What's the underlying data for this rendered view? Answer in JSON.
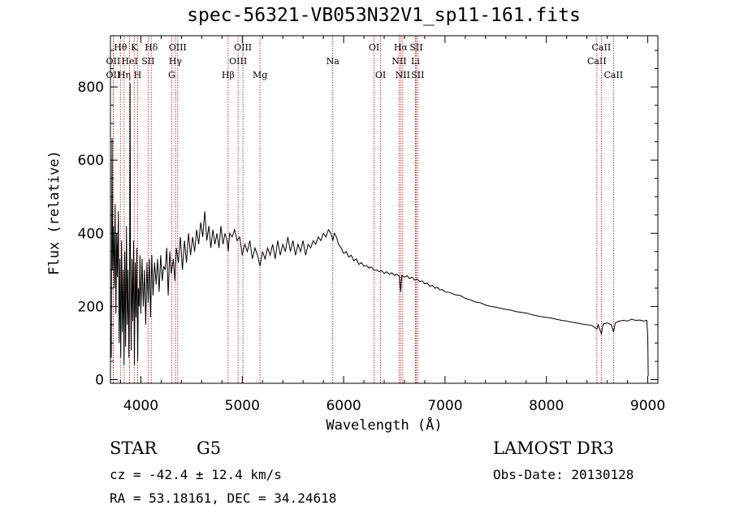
{
  "chart_data": {
    "type": "line",
    "title": "spec-56321-VB053N32V1_sp11-161.fits",
    "xlabel": "Wavelength (Å)",
    "ylabel": "Flux (relative)",
    "xlim": [
      3700,
      9100
    ],
    "ylim": [
      -10,
      940
    ],
    "xticks": [
      4000,
      5000,
      6000,
      7000,
      8000,
      9000
    ],
    "yticks": [
      0,
      200,
      400,
      600,
      800
    ],
    "series": [
      {
        "name": "flux",
        "points": [
          [
            3700,
            120
          ],
          [
            3708,
            60
          ],
          [
            3716,
            660
          ],
          [
            3722,
            300
          ],
          [
            3730,
            420
          ],
          [
            3738,
            250
          ],
          [
            3746,
            480
          ],
          [
            3754,
            180
          ],
          [
            3762,
            400
          ],
          [
            3770,
            280
          ],
          [
            3778,
            460
          ],
          [
            3786,
            100
          ],
          [
            3794,
            330
          ],
          [
            3802,
            60
          ],
          [
            3810,
            380
          ],
          [
            3818,
            130
          ],
          [
            3826,
            300
          ],
          [
            3834,
            40
          ],
          [
            3842,
            350
          ],
          [
            3850,
            90
          ],
          [
            3858,
            420
          ],
          [
            3866,
            150
          ],
          [
            3874,
            300
          ],
          [
            3882,
            60
          ],
          [
            3888,
            250
          ],
          [
            3894,
            810
          ],
          [
            3898,
            300
          ],
          [
            3904,
            80
          ],
          [
            3912,
            330
          ],
          [
            3920,
            160
          ],
          [
            3928,
            380
          ],
          [
            3936,
            40
          ],
          [
            3944,
            320
          ],
          [
            3952,
            170
          ],
          [
            3960,
            360
          ],
          [
            3968,
            50
          ],
          [
            3976,
            250
          ],
          [
            3984,
            200
          ],
          [
            3992,
            340
          ],
          [
            4000,
            180
          ],
          [
            4012,
            330
          ],
          [
            4024,
            200
          ],
          [
            4036,
            300
          ],
          [
            4048,
            150
          ],
          [
            4060,
            320
          ],
          [
            4072,
            210
          ],
          [
            4084,
            330
          ],
          [
            4096,
            170
          ],
          [
            4108,
            340
          ],
          [
            4120,
            230
          ],
          [
            4135,
            320
          ],
          [
            4150,
            260
          ],
          [
            4165,
            330
          ],
          [
            4180,
            240
          ],
          [
            4195,
            340
          ],
          [
            4210,
            270
          ],
          [
            4225,
            310
          ],
          [
            4240,
            300
          ],
          [
            4255,
            360
          ],
          [
            4270,
            230
          ],
          [
            4285,
            350
          ],
          [
            4300,
            290
          ],
          [
            4320,
            330
          ],
          [
            4335,
            270
          ],
          [
            4350,
            360
          ],
          [
            4370,
            320
          ],
          [
            4390,
            390
          ],
          [
            4410,
            300
          ],
          [
            4430,
            380
          ],
          [
            4450,
            320
          ],
          [
            4470,
            400
          ],
          [
            4490,
            340
          ],
          [
            4510,
            390
          ],
          [
            4530,
            350
          ],
          [
            4550,
            410
          ],
          [
            4570,
            370
          ],
          [
            4590,
            430
          ],
          [
            4610,
            390
          ],
          [
            4630,
            460
          ],
          [
            4650,
            380
          ],
          [
            4670,
            420
          ],
          [
            4690,
            360
          ],
          [
            4710,
            410
          ],
          [
            4730,
            370
          ],
          [
            4750,
            400
          ],
          [
            4770,
            360
          ],
          [
            4790,
            420
          ],
          [
            4810,
            370
          ],
          [
            4830,
            400
          ],
          [
            4850,
            380
          ],
          [
            4861,
            350
          ],
          [
            4875,
            400
          ],
          [
            4900,
            390
          ],
          [
            4925,
            410
          ],
          [
            4950,
            380
          ],
          [
            4975,
            390
          ],
          [
            5000,
            340
          ],
          [
            5025,
            370
          ],
          [
            5050,
            350
          ],
          [
            5075,
            380
          ],
          [
            5100,
            330
          ],
          [
            5125,
            360
          ],
          [
            5150,
            340
          ],
          [
            5175,
            310
          ],
          [
            5200,
            350
          ],
          [
            5225,
            330
          ],
          [
            5250,
            360
          ],
          [
            5275,
            340
          ],
          [
            5300,
            370
          ],
          [
            5325,
            330
          ],
          [
            5350,
            380
          ],
          [
            5375,
            340
          ],
          [
            5400,
            370
          ],
          [
            5425,
            350
          ],
          [
            5450,
            390
          ],
          [
            5475,
            350
          ],
          [
            5500,
            380
          ],
          [
            5525,
            340
          ],
          [
            5550,
            370
          ],
          [
            5575,
            350
          ],
          [
            5600,
            380
          ],
          [
            5625,
            340
          ],
          [
            5650,
            370
          ],
          [
            5675,
            360
          ],
          [
            5700,
            380
          ],
          [
            5725,
            370
          ],
          [
            5750,
            390
          ],
          [
            5775,
            380
          ],
          [
            5800,
            400
          ],
          [
            5825,
            390
          ],
          [
            5850,
            410
          ],
          [
            5875,
            400
          ],
          [
            5893,
            380
          ],
          [
            5910,
            400
          ],
          [
            5930,
            390
          ],
          [
            5950,
            370
          ],
          [
            5975,
            360
          ],
          [
            6000,
            345
          ],
          [
            6025,
            350
          ],
          [
            6050,
            335
          ],
          [
            6075,
            340
          ],
          [
            6100,
            325
          ],
          [
            6125,
            330
          ],
          [
            6150,
            315
          ],
          [
            6175,
            320
          ],
          [
            6200,
            310
          ],
          [
            6225,
            312
          ],
          [
            6250,
            305
          ],
          [
            6275,
            308
          ],
          [
            6300,
            298
          ],
          [
            6325,
            300
          ],
          [
            6350,
            295
          ],
          [
            6375,
            298
          ],
          [
            6400,
            290
          ],
          [
            6425,
            295
          ],
          [
            6450,
            288
          ],
          [
            6475,
            292
          ],
          [
            6500,
            285
          ],
          [
            6525,
            288
          ],
          [
            6550,
            282
          ],
          [
            6563,
            240
          ],
          [
            6575,
            285
          ],
          [
            6600,
            280
          ],
          [
            6625,
            284
          ],
          [
            6650,
            276
          ],
          [
            6675,
            280
          ],
          [
            6700,
            272
          ],
          [
            6725,
            275
          ],
          [
            6750,
            268
          ],
          [
            6775,
            270
          ],
          [
            6800,
            262
          ],
          [
            6825,
            264
          ],
          [
            6850,
            255
          ],
          [
            6875,
            258
          ],
          [
            6900,
            250
          ],
          [
            6925,
            252
          ],
          [
            6950,
            245
          ],
          [
            6975,
            246
          ],
          [
            7000,
            240
          ],
          [
            7050,
            238
          ],
          [
            7100,
            232
          ],
          [
            7150,
            230
          ],
          [
            7200,
            222
          ],
          [
            7250,
            218
          ],
          [
            7300,
            212
          ],
          [
            7350,
            210
          ],
          [
            7400,
            204
          ],
          [
            7450,
            200
          ],
          [
            7500,
            198
          ],
          [
            7550,
            195
          ],
          [
            7600,
            192
          ],
          [
            7650,
            190
          ],
          [
            7700,
            186
          ],
          [
            7750,
            184
          ],
          [
            7800,
            182
          ],
          [
            7850,
            178
          ],
          [
            7900,
            175
          ],
          [
            7950,
            172
          ],
          [
            8000,
            170
          ],
          [
            8050,
            168
          ],
          [
            8100,
            165
          ],
          [
            8150,
            162
          ],
          [
            8200,
            160
          ],
          [
            8250,
            157
          ],
          [
            8300,
            155
          ],
          [
            8350,
            152
          ],
          [
            8400,
            150
          ],
          [
            8450,
            148
          ],
          [
            8498,
            138
          ],
          [
            8510,
            150
          ],
          [
            8542,
            125
          ],
          [
            8560,
            152
          ],
          [
            8600,
            155
          ],
          [
            8640,
            150
          ],
          [
            8662,
            130
          ],
          [
            8680,
            155
          ],
          [
            8720,
            160
          ],
          [
            8760,
            162
          ],
          [
            8800,
            160
          ],
          [
            8840,
            165
          ],
          [
            8880,
            162
          ],
          [
            8920,
            163
          ],
          [
            8960,
            160
          ],
          [
            8990,
            162
          ],
          [
            9000,
            120
          ],
          [
            9005,
            10
          ]
        ]
      }
    ],
    "line_markers": [
      {
        "wl": 3727,
        "label": "OII",
        "row": 2
      },
      {
        "wl": 3727,
        "label": "OII",
        "row": 3
      },
      {
        "wl": 3798,
        "label": "Hθ",
        "row": 1
      },
      {
        "wl": 3835,
        "label": "Hη",
        "row": 3
      },
      {
        "wl": 3889,
        "label": "HeI",
        "row": 2
      },
      {
        "wl": 3934,
        "label": "K",
        "row": 1
      },
      {
        "wl": 3968,
        "label": "H",
        "row": 3
      },
      {
        "wl": 4071,
        "label": "SII",
        "row": 2
      },
      {
        "wl": 4102,
        "label": "Hδ",
        "row": 1
      },
      {
        "wl": 4304,
        "label": "G",
        "row": 3
      },
      {
        "wl": 4340,
        "label": "Hγ",
        "row": 2
      },
      {
        "wl": 4363,
        "label": "OIII",
        "row": 1
      },
      {
        "wl": 4861,
        "label": "Hβ",
        "row": 3
      },
      {
        "wl": 4959,
        "label": "OIII",
        "row": 2
      },
      {
        "wl": 5007,
        "label": "OIII",
        "row": 1
      },
      {
        "wl": 5175,
        "label": "Mg",
        "row": 3
      },
      {
        "wl": 5893,
        "label": "Na",
        "row": 2
      },
      {
        "wl": 6300,
        "label": "OI",
        "row": 1
      },
      {
        "wl": 6364,
        "label": "OI",
        "row": 3
      },
      {
        "wl": 6548,
        "label": "NII",
        "row": 2
      },
      {
        "wl": 6563,
        "label": "Hα",
        "row": 1
      },
      {
        "wl": 6583,
        "label": "NII",
        "row": 3
      },
      {
        "wl": 6708,
        "label": "Li",
        "row": 2
      },
      {
        "wl": 6716,
        "label": "SII",
        "row": 1
      },
      {
        "wl": 6731,
        "label": "SII",
        "row": 3
      },
      {
        "wl": 8498,
        "label": "CaII",
        "row": 2
      },
      {
        "wl": 8542,
        "label": "CaII",
        "row": 1
      },
      {
        "wl": 8662,
        "label": "CaII",
        "row": 3
      }
    ]
  },
  "info": {
    "object_class": "STAR",
    "subclass": "G5",
    "survey": "LAMOST DR3",
    "redshift": "cz = -42.4 ± 12.4 km/s",
    "obs_date": "Obs-Date: 20130128",
    "coords": "RA =  53.18161, DEC =  34.24618"
  },
  "colors": {
    "line_marker": "#c00000",
    "spectrum": "#000000"
  }
}
